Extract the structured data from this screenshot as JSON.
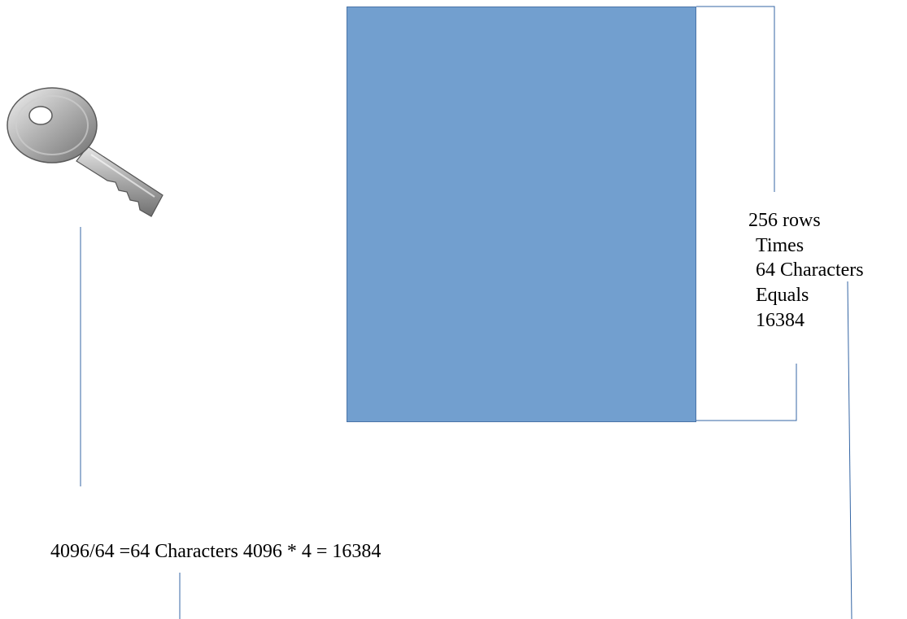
{
  "diagram": {
    "block_color": "#729fcf",
    "line_color": "#3465a4",
    "key_icon": "key-icon",
    "annotation": {
      "rows": "256 rows",
      "times": "Times",
      "characters": "64 Characters",
      "equals": "Equals",
      "total": "16384"
    },
    "formula": "4096/64 =64 Characters 4096 * 4 = 16384"
  }
}
